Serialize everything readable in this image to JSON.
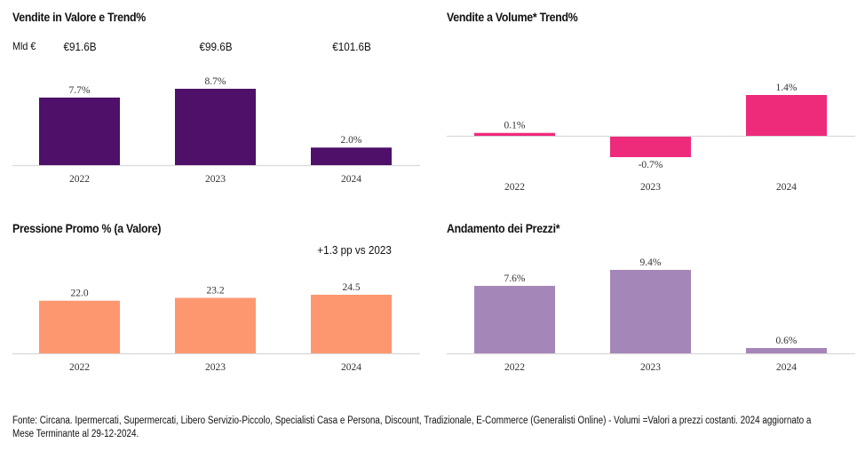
{
  "chart_data": [
    {
      "id": "valore",
      "type": "bar",
      "title": "Vendite in Valore e Trend%",
      "unit_label": "Mld €",
      "categories": [
        "2022",
        "2023",
        "2024"
      ],
      "values": [
        7.7,
        8.7,
        2.0
      ],
      "value_labels": [
        "7.7%",
        "8.7%",
        "2.0%"
      ],
      "totals": [
        "€91.6B",
        "€99.6B",
        "€101.6B"
      ],
      "ylim": [
        0,
        8.7
      ],
      "color": "#4e1068",
      "xlabel": "",
      "ylabel": "",
      "grid": false,
      "legend": "none"
    },
    {
      "id": "volume",
      "type": "bar",
      "title": "Vendite a Volume* Trend%",
      "categories": [
        "2022",
        "2023",
        "2024"
      ],
      "values": [
        0.1,
        -0.7,
        1.4
      ],
      "value_labels": [
        "0.1%",
        "-0.7%",
        "1.4%"
      ],
      "ylim": [
        -0.7,
        1.4
      ],
      "color": "#ee2a7b",
      "xlabel": "",
      "ylabel": "",
      "grid": false,
      "legend": "none"
    },
    {
      "id": "promo",
      "type": "bar",
      "title": "Pressione Promo % (a Valore)",
      "annotation": "+1.3 pp vs 2023",
      "categories": [
        "2022",
        "2023",
        "2024"
      ],
      "values": [
        22.0,
        23.2,
        24.5
      ],
      "value_labels": [
        "22.0",
        "23.2",
        "24.5"
      ],
      "ylim": [
        0,
        24.5
      ],
      "color": "#fd9770",
      "xlabel": "",
      "ylabel": "",
      "grid": false,
      "legend": "none"
    },
    {
      "id": "prezzi",
      "type": "bar",
      "title": "Andamento dei Prezzi*",
      "categories": [
        "2022",
        "2023",
        "2024"
      ],
      "values": [
        7.6,
        9.4,
        0.6
      ],
      "value_labels": [
        "7.6%",
        "9.4%",
        "0.6%"
      ],
      "ylim": [
        0,
        9.4
      ],
      "color": "#a586b8",
      "xlabel": "",
      "ylabel": "",
      "grid": false,
      "legend": "none"
    }
  ],
  "source_note": "Fonte: Circana. Ipermercati, Supermercati, Libero Servizio-Piccolo, Specialisti Casa e Persona, Discount, Tradizionale, E-Commerce (Generalisti Online) - Volumi =Valori a prezzi costanti. 2024 aggiornato a Mese Terminante al 29-12-2024."
}
